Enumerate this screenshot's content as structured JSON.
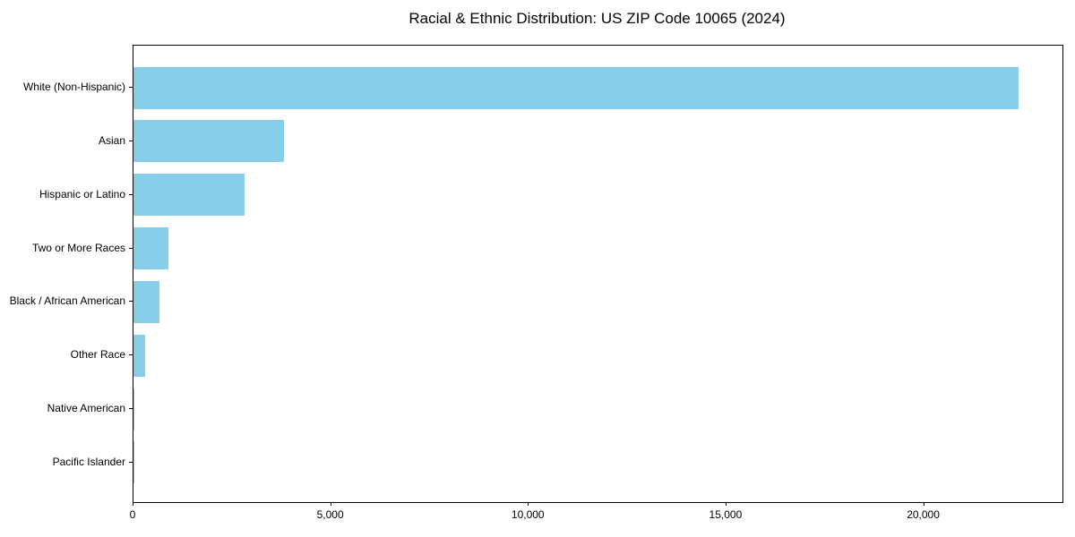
{
  "chart_data": {
    "type": "bar",
    "orientation": "horizontal",
    "title": "Racial & Ethnic Distribution: US ZIP Code 10065 (2024)",
    "categories": [
      "White (Non-Hispanic)",
      "Asian",
      "Hispanic or Latino",
      "Two or More Races",
      "Black / African American",
      "Other Race",
      "Native American",
      "Pacific Islander"
    ],
    "values": [
      22400,
      3800,
      2800,
      880,
      650,
      290,
      20,
      10
    ],
    "xlabel": "",
    "ylabel": "",
    "xlim": [
      0,
      23500
    ],
    "xticks": [
      0,
      5000,
      10000,
      15000,
      20000
    ],
    "xtick_labels": [
      "0",
      "5,000",
      "10,000",
      "15,000",
      "20,000"
    ],
    "bar_color": "#87CEEB",
    "axis_color": "#000000",
    "grid": false,
    "legend": null
  }
}
